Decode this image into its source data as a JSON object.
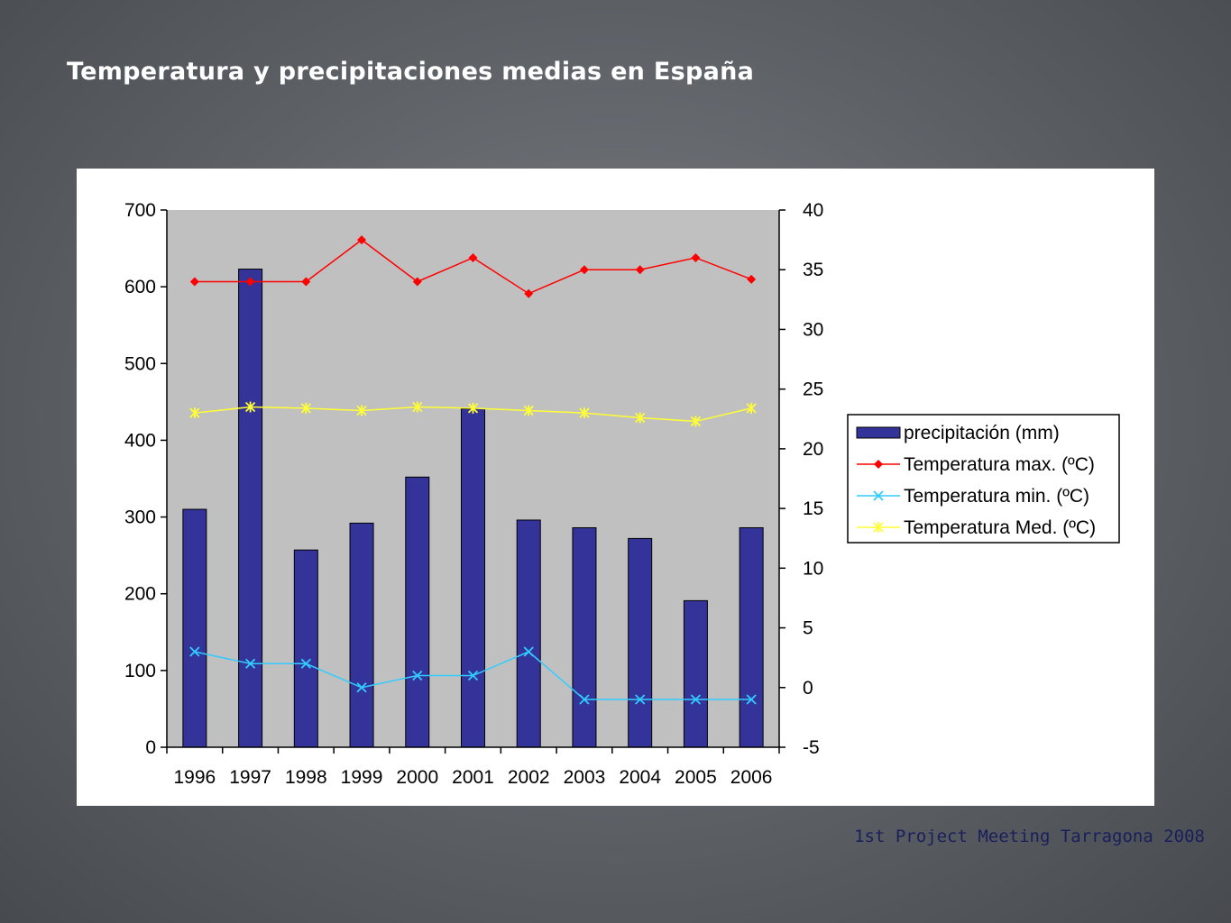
{
  "slide": {
    "title": "Temperatura y precipitaciones medias en España",
    "footer": "1st Project Meeting Tarragona 2008"
  },
  "colors": {
    "plot_background": "#c0c0c0",
    "bar": "#333399",
    "temp_max": "#ff0000",
    "temp_min": "#33ccff",
    "temp_med": "#ffff33"
  },
  "chart_data": {
    "type": "bar",
    "categories": [
      "1996",
      "1997",
      "1998",
      "1999",
      "2000",
      "2001",
      "2002",
      "2003",
      "2004",
      "2005",
      "2006"
    ],
    "y_left": {
      "ylim": [
        0,
        700
      ],
      "ticks": [
        "0",
        "100",
        "200",
        "300",
        "400",
        "500",
        "600",
        "700"
      ]
    },
    "y_right": {
      "ylim": [
        -5,
        40
      ],
      "ticks": [
        "-5",
        "0",
        "5",
        "10",
        "15",
        "20",
        "25",
        "30",
        "35",
        "40"
      ]
    },
    "grid": false,
    "legend_position": "right",
    "series": [
      {
        "name": "precipitación (mm)",
        "type": "bar",
        "axis": "left",
        "color": "#333399",
        "marker": "bar",
        "values": [
          310,
          623,
          257,
          292,
          352,
          441,
          296,
          286,
          272,
          191,
          286
        ]
      },
      {
        "name": "Temperatura max. (ºC)",
        "type": "line",
        "axis": "right",
        "color": "#ff0000",
        "marker": "diamond",
        "values": [
          34,
          34,
          34,
          37.5,
          34,
          36,
          33,
          35,
          35,
          36,
          34.2
        ]
      },
      {
        "name": "Temperatura min. (ºC)",
        "type": "line",
        "axis": "right",
        "color": "#33ccff",
        "marker": "x",
        "values": [
          3,
          2,
          2,
          0,
          1,
          1,
          3,
          -1,
          -1,
          -1,
          -1
        ]
      },
      {
        "name": "Temperatura Med. (ºC)",
        "type": "line",
        "axis": "right",
        "color": "#ffff33",
        "marker": "star",
        "values": [
          23,
          23.5,
          23.4,
          23.2,
          23.5,
          23.4,
          23.2,
          23,
          22.6,
          22.3,
          23.4
        ]
      }
    ]
  }
}
